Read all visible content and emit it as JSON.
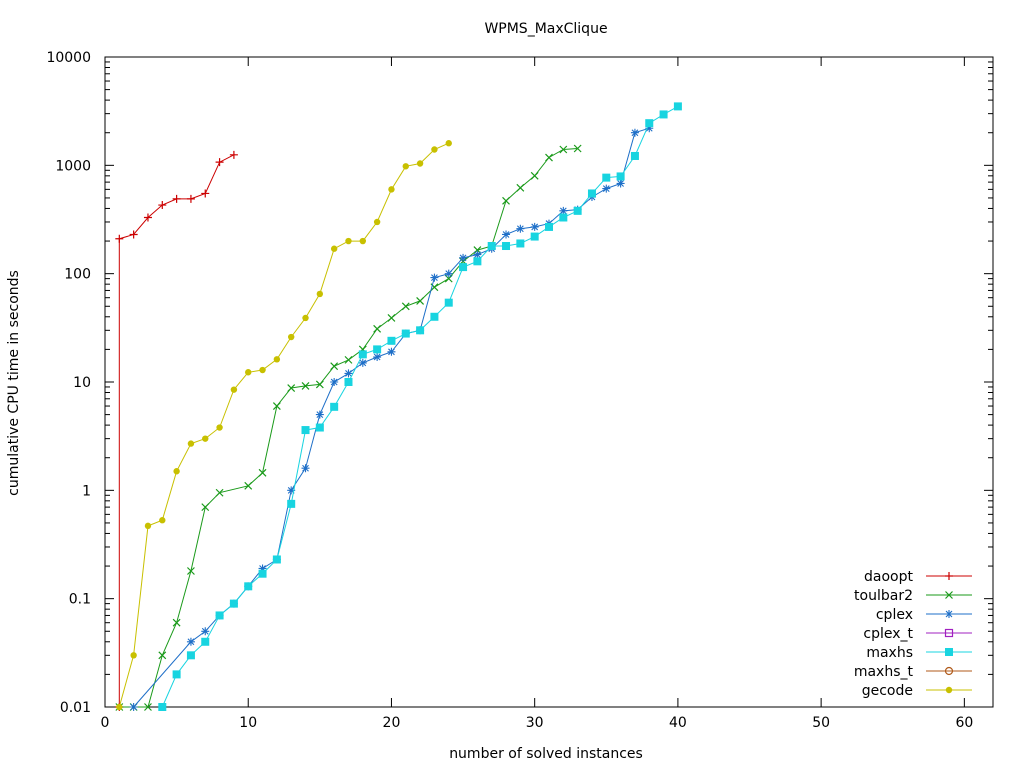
{
  "chart_data": {
    "type": "line",
    "title": "WPMS_MaxClique",
    "xlabel": "number of solved instances",
    "ylabel": "cumulative CPU time in seconds",
    "xlim": [
      0,
      62
    ],
    "ylim": [
      0.01,
      10000
    ],
    "yscale": "log",
    "xticks": [
      0,
      10,
      20,
      30,
      40,
      50,
      60
    ],
    "yticks": [
      0.01,
      0.1,
      1,
      10,
      100,
      1000,
      10000
    ],
    "ytick_labels": [
      "0.01",
      "0.1",
      "1",
      "10",
      "100",
      "1000",
      "10000"
    ],
    "legend_position": "bottom-right",
    "series": [
      {
        "name": "daoopt",
        "color": "#cc0000",
        "marker": "plus",
        "x": [
          1,
          1,
          2,
          3,
          4,
          5,
          6,
          7,
          8,
          9
        ],
        "y": [
          0.01,
          210,
          230,
          330,
          430,
          490,
          490,
          550,
          1070,
          1250
        ]
      },
      {
        "name": "toulbar2",
        "color": "#1a9a1a",
        "marker": "cross",
        "x": [
          1,
          2,
          3,
          4,
          5,
          6,
          7,
          8,
          10,
          11,
          12,
          13,
          14,
          15,
          16,
          17,
          18,
          19,
          20,
          21,
          22,
          23,
          24,
          25,
          26,
          27,
          28,
          29,
          30,
          31,
          32,
          33
        ],
        "y": [
          0.01,
          0.01,
          0.01,
          0.03,
          0.06,
          0.18,
          0.7,
          0.95,
          1.1,
          1.45,
          6.0,
          8.8,
          9.2,
          9.5,
          14,
          16,
          20,
          31,
          39,
          50,
          56,
          75,
          90,
          130,
          165,
          180,
          470,
          620,
          800,
          1180,
          1400,
          1430
        ]
      },
      {
        "name": "cplex",
        "color": "#1e6fc8",
        "marker": "star",
        "x": [
          2,
          6,
          7,
          8,
          9,
          10,
          11,
          12,
          13,
          14,
          15,
          16,
          17,
          18,
          19,
          20,
          21,
          22,
          23,
          24,
          25,
          26,
          27,
          28,
          29,
          30,
          31,
          32,
          33,
          34,
          35,
          36,
          37,
          38
        ],
        "y": [
          0.01,
          0.04,
          0.05,
          0.07,
          0.09,
          0.13,
          0.19,
          0.23,
          1.0,
          1.6,
          5.0,
          10,
          12,
          15,
          17,
          19,
          28,
          30,
          92,
          100,
          140,
          150,
          170,
          230,
          260,
          270,
          290,
          380,
          390,
          510,
          610,
          680,
          2000,
          2200
        ]
      },
      {
        "name": "cplex_t",
        "color": "#a020c0",
        "marker": "box-open",
        "x": [],
        "y": []
      },
      {
        "name": "maxhs",
        "color": "#18d4e0",
        "marker": "box-filled",
        "x": [
          4,
          5,
          6,
          7,
          8,
          9,
          10,
          11,
          12,
          13,
          14,
          15,
          16,
          17,
          18,
          19,
          20,
          21,
          22,
          23,
          24,
          25,
          26,
          27,
          28,
          29,
          30,
          31,
          32,
          33,
          34,
          35,
          36,
          37,
          38,
          39,
          40
        ],
        "y": [
          0.01,
          0.02,
          0.03,
          0.04,
          0.07,
          0.09,
          0.13,
          0.17,
          0.23,
          0.75,
          3.6,
          3.8,
          5.9,
          10,
          18,
          20,
          24,
          28,
          30,
          40,
          54,
          115,
          130,
          180,
          180,
          190,
          220,
          270,
          330,
          380,
          550,
          770,
          790,
          1220,
          2450,
          2950,
          3500
        ]
      },
      {
        "name": "maxhs_t",
        "color": "#b05a1a",
        "marker": "circle-open",
        "x": [],
        "y": []
      },
      {
        "name": "gecode",
        "color": "#c8c000",
        "marker": "circle-filled",
        "x": [
          1,
          2,
          3,
          4,
          5,
          6,
          7,
          8,
          9,
          10,
          11,
          12,
          13,
          14,
          15,
          16,
          17,
          18,
          19,
          20,
          21,
          22,
          23,
          24
        ],
        "y": [
          0.01,
          0.03,
          0.47,
          0.53,
          1.5,
          2.7,
          3.0,
          3.8,
          8.5,
          12.3,
          12.9,
          16.2,
          26,
          39,
          65,
          170,
          200,
          200,
          300,
          600,
          980,
          1040,
          1400,
          1600
        ]
      }
    ]
  }
}
